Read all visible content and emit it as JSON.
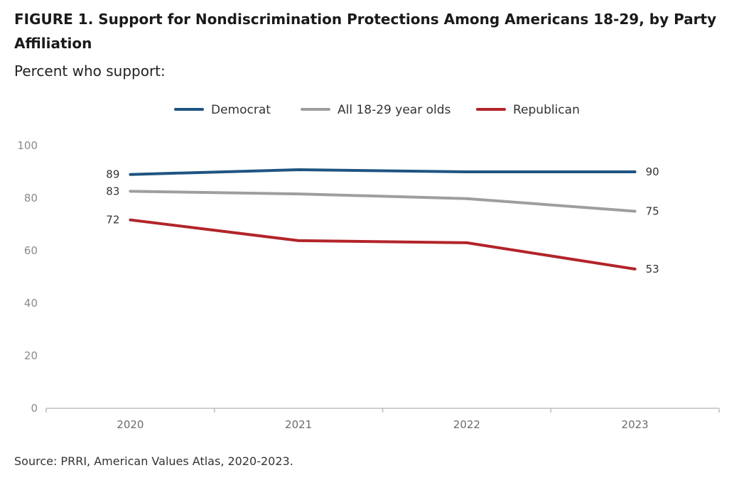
{
  "title": "FIGURE 1.  Support for Nondiscrimination Protections Among Americans 18-29, by Party Affiliation",
  "subtitle": "Percent who support:",
  "source": "Source: PRRI, American Values Atlas, 2020-2023.",
  "chart_data": {
    "type": "line",
    "title": "FIGURE 1.  Support for Nondiscrimination Protections Among Americans 18-29, by Party Affiliation",
    "subtitle": "Percent who support:",
    "x": [
      "2020",
      "2021",
      "2022",
      "2023"
    ],
    "ylim": [
      0,
      100
    ],
    "yticks": [
      0,
      20,
      40,
      60,
      80,
      100
    ],
    "grid": false,
    "legend_position": "top-center",
    "series": [
      {
        "name": "Democrat",
        "color": "#1f5482",
        "values": [
          89,
          90.8,
          90,
          90
        ],
        "labels": [
          "89",
          "",
          "",
          "90"
        ]
      },
      {
        "name": "All 18-29 year olds",
        "color": "#9e9e9e",
        "values": [
          82.6,
          81.6,
          79.8,
          75
        ],
        "labels": [
          "83",
          "",
          "",
          "75"
        ]
      },
      {
        "name": "Republican",
        "color": "#b22429",
        "values": [
          71.7,
          63.8,
          63,
          53
        ],
        "labels": [
          "72",
          "",
          "",
          "53"
        ]
      }
    ]
  }
}
